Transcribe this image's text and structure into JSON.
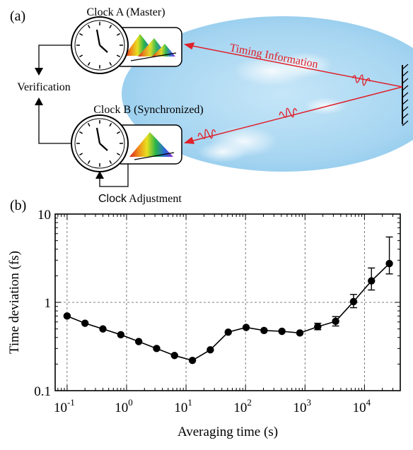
{
  "panel_a": {
    "label": "(a)",
    "clock_a_label": "Clock A (Master)",
    "clock_b_label": "Clock B (Synchronized)",
    "verification_label": "Verification",
    "adjustment_word_clock": "Clock",
    "adjustment_word_rest": " Adjustment",
    "timing_label": "Timing Information",
    "colors": {
      "beam": "#e0202a",
      "sky": "#9fd0ef"
    }
  },
  "panel_b": {
    "label": "(b)"
  },
  "chart_data": {
    "type": "scatter",
    "xlabel": "Averaging time (s)",
    "ylabel": "Time deviation (fs)",
    "xscale": "log",
    "yscale": "log",
    "xlim": [
      0.063,
      40000
    ],
    "ylim": [
      0.1,
      10
    ],
    "grid": true,
    "x_ticks": [
      {
        "base": "10",
        "exp": "-1"
      },
      {
        "base": "10",
        "exp": "0"
      },
      {
        "base": "10",
        "exp": "1"
      },
      {
        "base": "10",
        "exp": "2"
      },
      {
        "base": "10",
        "exp": "3"
      },
      {
        "base": "10",
        "exp": "4"
      }
    ],
    "y_ticks": [
      "0.1",
      "1",
      "10"
    ],
    "series": [
      {
        "x": [
          0.1,
          0.2,
          0.4,
          0.8,
          1.6,
          3.2,
          6.4,
          12.8,
          25.6,
          51.2,
          102.4,
          204.8,
          409.6,
          819.2,
          1638.4,
          3276.8,
          6553.6,
          13107.2,
          26214.4
        ],
        "y": [
          0.7,
          0.58,
          0.5,
          0.43,
          0.36,
          0.3,
          0.25,
          0.22,
          0.29,
          0.46,
          0.52,
          0.48,
          0.47,
          0.45,
          0.53,
          0.61,
          1.02,
          1.75,
          2.75
        ],
        "err_low": [
          0,
          0,
          0,
          0,
          0,
          0,
          0,
          0,
          0,
          0,
          0,
          0,
          0,
          0,
          0.49,
          0.54,
          0.87,
          1.38,
          2.1
        ],
        "err_high": [
          0,
          0,
          0,
          0,
          0,
          0,
          0,
          0,
          0,
          0,
          0,
          0,
          0,
          0,
          0.58,
          0.69,
          1.23,
          2.45,
          5.5
        ]
      }
    ]
  }
}
